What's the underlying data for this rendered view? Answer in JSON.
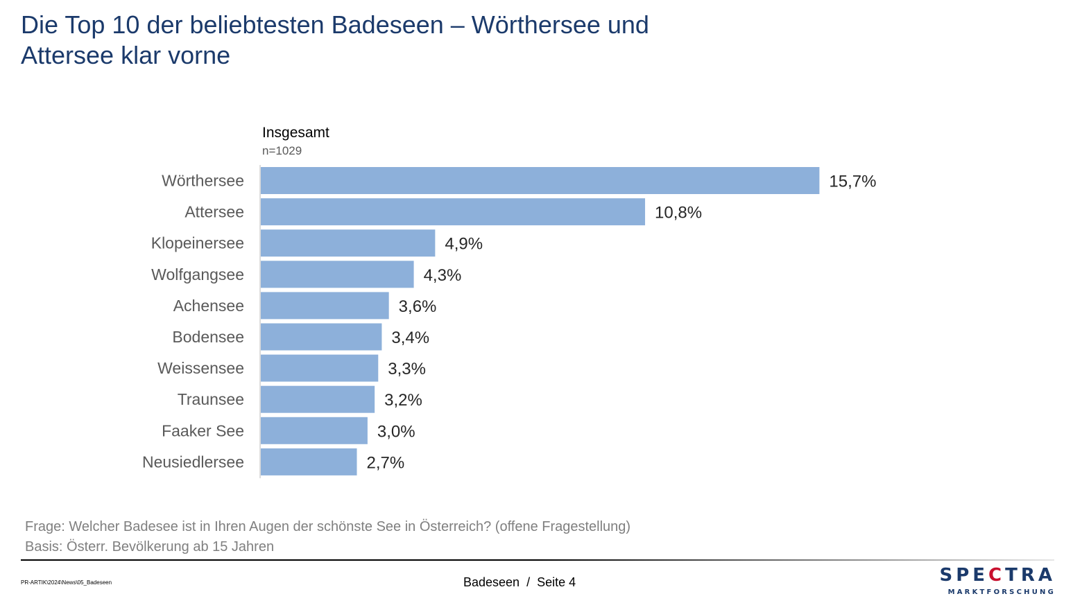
{
  "title_line1": "Die Top 10 der beliebtesten Badeseen – Wörthersee und",
  "title_line2": "Attersee klar vorne",
  "chart_data": {
    "type": "bar",
    "orientation": "horizontal",
    "series": [
      {
        "name": "Insgesamt",
        "sample": "n=1029"
      }
    ],
    "categories": [
      "Wörthersee",
      "Attersee",
      "Klopeinersee",
      "Wolfgangsee",
      "Achensee",
      "Bodensee",
      "Weissensee",
      "Traunsee",
      "Faaker See",
      "Neusiedlersee"
    ],
    "values": [
      15.7,
      10.8,
      4.9,
      4.3,
      3.6,
      3.4,
      3.3,
      3.2,
      3.0,
      2.7
    ],
    "value_labels": [
      "15,7%",
      "10,8%",
      "4,9%",
      "4,3%",
      "3,6%",
      "3,4%",
      "3,3%",
      "3,2%",
      "3,0%",
      "2,7%"
    ],
    "xlim": [
      0,
      16
    ],
    "bar_color": "#8db0da",
    "grid": false
  },
  "footnotes": {
    "question": "Frage: Welcher Badesee ist in Ihren Augen der schönste See in Österreich? (offene Fragestellung)",
    "basis": "Basis: Österr. Bevölkerung ab 15 Jahren"
  },
  "footer": {
    "path": "PR-ARTIK\\2024\\News\\05_Badeseen",
    "section": "Badeseen",
    "separator": "/",
    "page": "Seite 4"
  },
  "logo": {
    "part1": "SPE",
    "part2": "C",
    "part3": "TRA",
    "tagline": "MARKTFORSCHUNG",
    "primary_color": "#1b3a6b",
    "accent_color": "#c8102e"
  }
}
